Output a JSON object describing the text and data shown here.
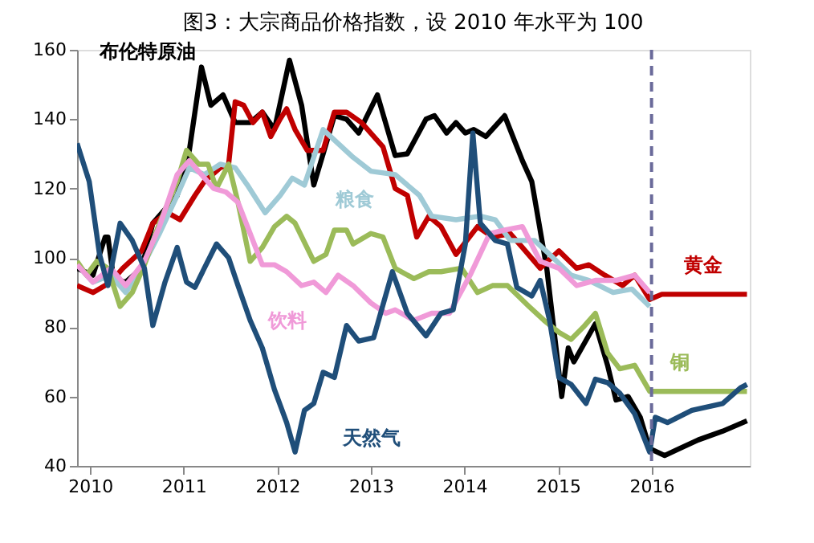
{
  "chart_data": {
    "type": "line",
    "title": "图3：大宗商品价格指数，设 2010 年水平为 100",
    "xlim": [
      2009.86,
      2017.05
    ],
    "xticks": [
      2010,
      2011,
      2012,
      2013,
      2014,
      2015,
      2016
    ],
    "ylim": [
      40,
      160
    ],
    "yticks": [
      40,
      60,
      80,
      100,
      120,
      140,
      160
    ],
    "grid": false,
    "legend": false,
    "marker": "none",
    "line_style": "solid",
    "ref_lines": [
      {
        "axis": "x",
        "value": 2016,
        "color": "#6a6a9a",
        "line_style": "dashed"
      }
    ],
    "series": [
      {
        "name": "布伦特原油",
        "color": "#000000",
        "x": [
          2009.86,
          2010.03,
          2010.16,
          2010.19,
          2010.25,
          2010.38,
          2010.55,
          2010.67,
          2010.93,
          2011.06,
          2011.19,
          2011.29,
          2011.42,
          2011.55,
          2011.71,
          2011.84,
          2011.97,
          2012.13,
          2012.26,
          2012.39,
          2012.49,
          2012.61,
          2012.74,
          2012.87,
          2013.07,
          2013.26,
          2013.39,
          2013.59,
          2013.68,
          2013.81,
          2013.91,
          2014.01,
          2014.1,
          2014.23,
          2014.43,
          2014.62,
          2014.72,
          2014.88,
          2015.04,
          2015.11,
          2015.17,
          2015.4,
          2015.53,
          2015.62,
          2015.75,
          2015.88,
          2015.98,
          2016.14,
          2016.3,
          2016.5,
          2016.76,
          2017.02
        ],
        "values": [
          97,
          95,
          106,
          106,
          94,
          93,
          97,
          110,
          118,
          131,
          155,
          144,
          147,
          139,
          139,
          142,
          137,
          157,
          144,
          121,
          130,
          141,
          140,
          136,
          147,
          129.5,
          130,
          140,
          141,
          136,
          139,
          136,
          137,
          135,
          141,
          128,
          122,
          97,
          60,
          74,
          70,
          81,
          69,
          59,
          60,
          54,
          45,
          43,
          45,
          47.5,
          50,
          53
        ]
      },
      {
        "name": "黄金",
        "color": "#c00000",
        "x": [
          2009.86,
          2010.03,
          2010.22,
          2010.35,
          2010.55,
          2010.67,
          2010.83,
          2010.96,
          2011.12,
          2011.22,
          2011.39,
          2011.48,
          2011.55,
          2011.64,
          2011.74,
          2011.84,
          2011.93,
          2012.03,
          2012.1,
          2012.19,
          2012.32,
          2012.49,
          2012.61,
          2012.74,
          2012.9,
          2013.13,
          2013.26,
          2013.39,
          2013.49,
          2013.62,
          2013.75,
          2013.91,
          2014.14,
          2014.3,
          2014.49,
          2014.62,
          2014.81,
          2015.01,
          2015.2,
          2015.33,
          2015.5,
          2015.69,
          2015.82,
          2015.98,
          2016.11,
          2017.02
        ],
        "values": [
          92,
          90,
          93,
          97,
          102,
          110,
          113,
          111,
          118,
          122,
          126,
          127,
          145,
          144,
          139,
          142,
          135,
          140,
          143,
          137,
          131,
          131,
          142,
          142,
          139,
          132,
          120,
          118,
          106,
          112,
          109,
          101,
          109,
          106,
          107,
          103,
          97,
          102,
          97,
          98,
          95,
          92,
          95,
          88,
          89.5,
          89.5
        ]
      },
      {
        "name": "粮食",
        "color": "#9fcad6",
        "x": [
          2009.86,
          2010.03,
          2010.22,
          2010.38,
          2010.55,
          2010.74,
          2010.93,
          2011.06,
          2011.22,
          2011.39,
          2011.55,
          2011.68,
          2011.87,
          2012.03,
          2012.16,
          2012.29,
          2012.49,
          2012.65,
          2012.81,
          2013.0,
          2013.26,
          2013.52,
          2013.65,
          2013.91,
          2014.17,
          2014.33,
          2014.49,
          2014.75,
          2014.91,
          2015.14,
          2015.33,
          2015.59,
          2015.79,
          2015.98
        ],
        "values": [
          98,
          93,
          95,
          90,
          97,
          107,
          118,
          126,
          124,
          127,
          126,
          121,
          113,
          118,
          123,
          121,
          137,
          133,
          129,
          125,
          124,
          118,
          112,
          111,
          112,
          111,
          105,
          105,
          101,
          95,
          93.5,
          90,
          91,
          86
        ]
      },
      {
        "name": "铜",
        "color": "#9bbb59",
        "x": [
          2009.86,
          2009.96,
          2010.07,
          2010.19,
          2010.32,
          2010.45,
          2010.58,
          2010.74,
          2010.93,
          2011.03,
          2011.16,
          2011.26,
          2011.35,
          2011.48,
          2011.58,
          2011.71,
          2011.84,
          2011.97,
          2012.1,
          2012.19,
          2012.39,
          2012.52,
          2012.61,
          2012.74,
          2012.81,
          2013.0,
          2013.13,
          2013.26,
          2013.46,
          2013.62,
          2013.75,
          2013.97,
          2014.14,
          2014.3,
          2014.46,
          2014.69,
          2014.85,
          2015.01,
          2015.14,
          2015.27,
          2015.4,
          2015.53,
          2015.66,
          2015.82,
          2015.98,
          2017.02
        ],
        "values": [
          99,
          95,
          99,
          97,
          86,
          90,
          98,
          110,
          122,
          131,
          127,
          127,
          120,
          127,
          116,
          99,
          103,
          109,
          112,
          110,
          99,
          101,
          108,
          108,
          104,
          107,
          106,
          97,
          94,
          96,
          96,
          97,
          90,
          92,
          92,
          86,
          82,
          78.5,
          76.5,
          80,
          84,
          72.6,
          68,
          69,
          61.5,
          61.5
        ]
      },
      {
        "name": "饮料",
        "color": "#f09ad8",
        "x": [
          2009.86,
          2010.03,
          2010.22,
          2010.38,
          2010.58,
          2010.74,
          2010.93,
          2011.06,
          2011.19,
          2011.32,
          2011.45,
          2011.58,
          2011.71,
          2011.84,
          2011.97,
          2012.1,
          2012.26,
          2012.39,
          2012.52,
          2012.65,
          2012.81,
          2013.0,
          2013.16,
          2013.26,
          2013.46,
          2013.65,
          2013.84,
          2014.07,
          2014.27,
          2014.43,
          2014.62,
          2014.81,
          2015.01,
          2015.2,
          2015.4,
          2015.62,
          2015.82,
          2015.98
        ],
        "values": [
          98,
          93,
          97,
          92,
          99,
          109,
          124,
          128,
          124,
          120,
          119,
          116,
          107,
          98,
          98,
          96,
          92,
          93,
          90,
          95,
          92,
          87,
          84,
          85,
          82,
          84,
          84,
          95.5,
          107,
          108,
          109,
          99,
          97,
          92,
          93.5,
          93.5,
          95,
          90
        ]
      },
      {
        "name": "天然气",
        "color": "#1f4e79",
        "x": [
          2009.86,
          2009.99,
          2010.1,
          2010.19,
          2010.32,
          2010.45,
          2010.58,
          2010.67,
          2010.8,
          2010.93,
          2011.03,
          2011.12,
          2011.22,
          2011.35,
          2011.48,
          2011.58,
          2011.71,
          2011.84,
          2011.97,
          2012.1,
          2012.19,
          2012.29,
          2012.39,
          2012.49,
          2012.61,
          2012.74,
          2012.87,
          2013.03,
          2013.23,
          2013.39,
          2013.59,
          2013.75,
          2013.88,
          2014.01,
          2014.09,
          2014.17,
          2014.33,
          2014.46,
          2014.56,
          2014.72,
          2014.81,
          2014.91,
          2015.01,
          2015.14,
          2015.3,
          2015.4,
          2015.53,
          2015.66,
          2015.82,
          2015.98,
          2016.04,
          2016.17,
          2016.43,
          2016.76,
          2016.95,
          2017.02
        ],
        "values": [
          133,
          122,
          101,
          92,
          110,
          105,
          97,
          80.5,
          93,
          103,
          93,
          91.5,
          97,
          104,
          100,
          92,
          82,
          74,
          62,
          52.5,
          44,
          56,
          58,
          67,
          65.5,
          80.5,
          76,
          77,
          96,
          84,
          77.5,
          84,
          85,
          104,
          136,
          110,
          105,
          104,
          91.5,
          89,
          93.5,
          82,
          65.5,
          63.5,
          58,
          65,
          64,
          61,
          55,
          44,
          54,
          52.5,
          56,
          58,
          62.5,
          63.5
        ]
      }
    ]
  }
}
